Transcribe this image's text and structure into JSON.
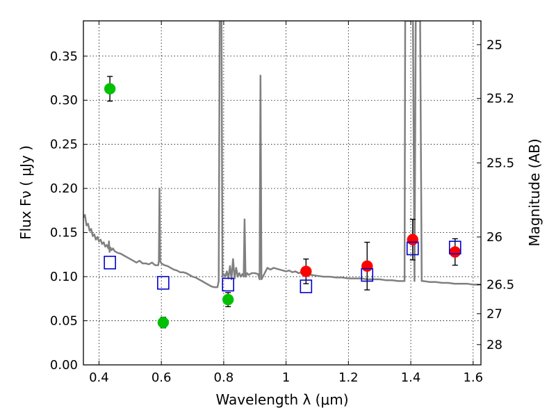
{
  "chart_data": {
    "type": "scatter",
    "title": "",
    "xlabel": "Wavelength  λ (μm)",
    "ylabel_left": "Flux  Fν  ( μJy )",
    "ylabel_right": "Magnitude (AB)",
    "xlim": [
      0.35,
      1.625
    ],
    "ylim": [
      0.0,
      0.39
    ],
    "grid": true,
    "x_ticks": [
      {
        "value": 0.4,
        "label": "0.4"
      },
      {
        "value": 0.6,
        "label": "0.6"
      },
      {
        "value": 0.8,
        "label": "0.8"
      },
      {
        "value": 1.0,
        "label": "1"
      },
      {
        "value": 1.2,
        "label": "1.2"
      },
      {
        "value": 1.4,
        "label": "1.4"
      },
      {
        "value": 1.6,
        "label": "1.6"
      }
    ],
    "y_ticks": [
      {
        "value": 0.0,
        "label": "0.00"
      },
      {
        "value": 0.05,
        "label": "0.05"
      },
      {
        "value": 0.1,
        "label": "0.10"
      },
      {
        "value": 0.15,
        "label": "0.15"
      },
      {
        "value": 0.2,
        "label": "0.20"
      },
      {
        "value": 0.25,
        "label": "0.25"
      },
      {
        "value": 0.3,
        "label": "0.30"
      },
      {
        "value": 0.35,
        "label": "0.35"
      }
    ],
    "right_ticks": [
      {
        "flux": 0.363,
        "label": "25"
      },
      {
        "flux": 0.302,
        "label": "25.2"
      },
      {
        "flux": 0.229,
        "label": "25.5"
      },
      {
        "flux": 0.145,
        "label": "26"
      },
      {
        "flux": 0.091,
        "label": "26.5"
      },
      {
        "flux": 0.058,
        "label": "27"
      },
      {
        "flux": 0.023,
        "label": "28"
      }
    ],
    "model_spectrum": {
      "color": "#808080",
      "points": [
        [
          0.35,
          0.167
        ],
        [
          0.355,
          0.17
        ],
        [
          0.36,
          0.158
        ],
        [
          0.365,
          0.16
        ],
        [
          0.37,
          0.152
        ],
        [
          0.375,
          0.154
        ],
        [
          0.38,
          0.146
        ],
        [
          0.385,
          0.148
        ],
        [
          0.39,
          0.142
        ],
        [
          0.395,
          0.145
        ],
        [
          0.4,
          0.14
        ],
        [
          0.405,
          0.142
        ],
        [
          0.41,
          0.137
        ],
        [
          0.415,
          0.139
        ],
        [
          0.42,
          0.134
        ],
        [
          0.425,
          0.136
        ],
        [
          0.43,
          0.132
        ],
        [
          0.432,
          0.14
        ],
        [
          0.434,
          0.128
        ],
        [
          0.437,
          0.133
        ],
        [
          0.44,
          0.13
        ],
        [
          0.445,
          0.132
        ],
        [
          0.45,
          0.129
        ],
        [
          0.46,
          0.127
        ],
        [
          0.47,
          0.126
        ],
        [
          0.48,
          0.124
        ],
        [
          0.49,
          0.122
        ],
        [
          0.5,
          0.12
        ],
        [
          0.51,
          0.118
        ],
        [
          0.52,
          0.116
        ],
        [
          0.53,
          0.118
        ],
        [
          0.54,
          0.115
        ],
        [
          0.55,
          0.115
        ],
        [
          0.56,
          0.114
        ],
        [
          0.57,
          0.116
        ],
        [
          0.58,
          0.113
        ],
        [
          0.59,
          0.113
        ],
        [
          0.592,
          0.118
        ],
        [
          0.594,
          0.2
        ],
        [
          0.596,
          0.118
        ],
        [
          0.6,
          0.115
        ],
        [
          0.61,
          0.113
        ],
        [
          0.62,
          0.112
        ],
        [
          0.63,
          0.11
        ],
        [
          0.64,
          0.108
        ],
        [
          0.65,
          0.107
        ],
        [
          0.66,
          0.105
        ],
        [
          0.67,
          0.105
        ],
        [
          0.68,
          0.104
        ],
        [
          0.69,
          0.102
        ],
        [
          0.7,
          0.1
        ],
        [
          0.71,
          0.099
        ],
        [
          0.72,
          0.097
        ],
        [
          0.73,
          0.095
        ],
        [
          0.74,
          0.093
        ],
        [
          0.75,
          0.091
        ],
        [
          0.76,
          0.089
        ],
        [
          0.77,
          0.088
        ],
        [
          0.78,
          0.088
        ],
        [
          0.784,
          0.095
        ],
        [
          0.787,
          0.39
        ],
        [
          0.793,
          0.39
        ],
        [
          0.796,
          0.1
        ],
        [
          0.8,
          0.103
        ],
        [
          0.805,
          0.1
        ],
        [
          0.81,
          0.106
        ],
        [
          0.815,
          0.098
        ],
        [
          0.82,
          0.112
        ],
        [
          0.825,
          0.097
        ],
        [
          0.83,
          0.12
        ],
        [
          0.835,
          0.098
        ],
        [
          0.84,
          0.11
        ],
        [
          0.845,
          0.1
        ],
        [
          0.85,
          0.104
        ],
        [
          0.855,
          0.1
        ],
        [
          0.86,
          0.103
        ],
        [
          0.864,
          0.1
        ],
        [
          0.867,
          0.165
        ],
        [
          0.87,
          0.1
        ],
        [
          0.875,
          0.104
        ],
        [
          0.88,
          0.102
        ],
        [
          0.89,
          0.104
        ],
        [
          0.9,
          0.104
        ],
        [
          0.91,
          0.103
        ],
        [
          0.915,
          0.097
        ],
        [
          0.918,
          0.328
        ],
        [
          0.921,
          0.097
        ],
        [
          0.93,
          0.103
        ],
        [
          0.94,
          0.11
        ],
        [
          0.95,
          0.108
        ],
        [
          0.96,
          0.11
        ],
        [
          0.97,
          0.109
        ],
        [
          0.98,
          0.108
        ],
        [
          0.99,
          0.107
        ],
        [
          1.0,
          0.106
        ],
        [
          1.01,
          0.107
        ],
        [
          1.02,
          0.105
        ],
        [
          1.03,
          0.106
        ],
        [
          1.04,
          0.104
        ],
        [
          1.05,
          0.105
        ],
        [
          1.06,
          0.103
        ],
        [
          1.08,
          0.102
        ],
        [
          1.1,
          0.101
        ],
        [
          1.12,
          0.1
        ],
        [
          1.14,
          0.1
        ],
        [
          1.16,
          0.099
        ],
        [
          1.18,
          0.099
        ],
        [
          1.2,
          0.098
        ],
        [
          1.22,
          0.098
        ],
        [
          1.24,
          0.098
        ],
        [
          1.26,
          0.097
        ],
        [
          1.28,
          0.097
        ],
        [
          1.3,
          0.097
        ],
        [
          1.32,
          0.096
        ],
        [
          1.34,
          0.096
        ],
        [
          1.36,
          0.095
        ],
        [
          1.38,
          0.095
        ],
        [
          1.382,
          0.39
        ],
        [
          1.398,
          0.39
        ],
        [
          1.402,
          0.39
        ],
        [
          1.407,
          0.39
        ],
        [
          1.412,
          0.095
        ],
        [
          1.416,
          0.39
        ],
        [
          1.43,
          0.39
        ],
        [
          1.435,
          0.095
        ],
        [
          1.44,
          0.095
        ],
        [
          1.46,
          0.094
        ],
        [
          1.48,
          0.094
        ],
        [
          1.5,
          0.093
        ],
        [
          1.52,
          0.093
        ],
        [
          1.54,
          0.092
        ],
        [
          1.56,
          0.092
        ],
        [
          1.58,
          0.092
        ],
        [
          1.6,
          0.091
        ],
        [
          1.625,
          0.091
        ]
      ]
    },
    "series": [
      {
        "marker": "circle",
        "color": "#00c000",
        "points": [
          {
            "x": 0.435,
            "y": 0.313,
            "err": 0.014
          },
          {
            "x": 0.606,
            "y": 0.048,
            "err": 0.006
          },
          {
            "x": 0.814,
            "y": 0.074,
            "err": 0.008
          }
        ]
      },
      {
        "marker": "circle",
        "color": "#ff0000",
        "points": [
          {
            "x": 1.064,
            "y": 0.106,
            "err": 0.014
          },
          {
            "x": 1.26,
            "y": 0.112,
            "err": 0.027
          },
          {
            "x": 1.406,
            "y": 0.142,
            "err": 0.023
          },
          {
            "x": 1.542,
            "y": 0.128,
            "err": 0.015
          }
        ]
      },
      {
        "marker": "square",
        "color": "#0000cc",
        "points": [
          {
            "x": 0.435,
            "y": 0.116
          },
          {
            "x": 0.606,
            "y": 0.093
          },
          {
            "x": 0.814,
            "y": 0.091
          },
          {
            "x": 1.064,
            "y": 0.089
          },
          {
            "x": 1.26,
            "y": 0.102
          },
          {
            "x": 1.406,
            "y": 0.132
          },
          {
            "x": 1.542,
            "y": 0.133
          }
        ]
      }
    ]
  }
}
